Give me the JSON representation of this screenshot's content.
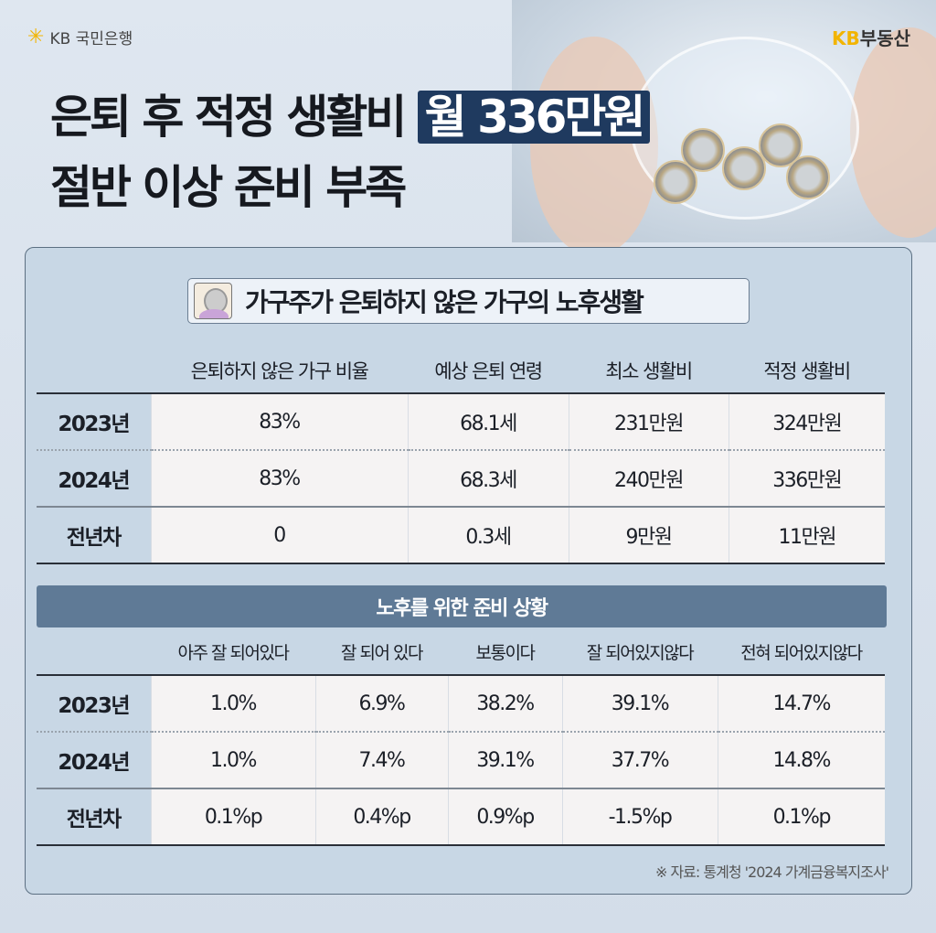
{
  "brand": {
    "bank": "KB 국민은행",
    "realestate_kb": "KB",
    "realestate": "부동산"
  },
  "headline": {
    "line1_prefix": "은퇴 후 적정 생활비",
    "line1_highlight": "월 336만원",
    "line2": "절반 이상 준비 부족"
  },
  "section1": {
    "title": "가구주가 은퇴하지 않은 가구의 노후생활",
    "icon": "elderly-woman-avatar",
    "columns": [
      "은퇴하지 않은 가구 비율",
      "예상 은퇴 연령",
      "최소 생활비",
      "적정 생활비"
    ],
    "rows": [
      {
        "label": "2023년",
        "values": [
          "83%",
          "68.1세",
          "231만원",
          "324만원"
        ]
      },
      {
        "label": "2024년",
        "values": [
          "83%",
          "68.3세",
          "240만원",
          "336만원"
        ]
      },
      {
        "label": "전년차",
        "values": [
          "0",
          "0.3세",
          "9만원",
          "11만원"
        ]
      }
    ]
  },
  "section2": {
    "title": "노후를 위한 준비 상황",
    "columns": [
      "아주 잘 되어있다",
      "잘 되어 있다",
      "보통이다",
      "잘 되어있지않다",
      "전혀 되어있지않다"
    ],
    "rows": [
      {
        "label": "2023년",
        "values": [
          "1.0%",
          "6.9%",
          "38.2%",
          "39.1%",
          "14.7%"
        ]
      },
      {
        "label": "2024년",
        "values": [
          "1.0%",
          "7.4%",
          "39.1%",
          "37.7%",
          "14.8%"
        ]
      },
      {
        "label": "전년차",
        "values": [
          "0.1%p",
          "0.4%p",
          "0.9%p",
          "-1.5%p",
          "0.1%p"
        ]
      }
    ]
  },
  "source": "※ 자료: 통계청 '2024 가계금융복지조사'",
  "colors": {
    "highlight": "#1f3a5f",
    "banner": "#5f7a96",
    "panel": "#c8d7e5",
    "kb_yellow": "#f2b400"
  }
}
